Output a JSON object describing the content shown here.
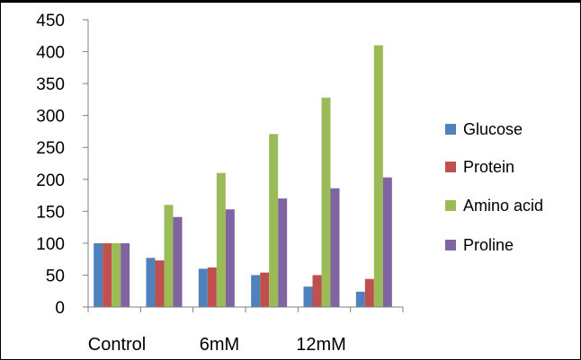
{
  "colors": {
    "glucose": "#4f81bd",
    "protein": "#c0504d",
    "amino_acid": "#9bbb59",
    "proline": "#8064a2",
    "axis": "#7f7f7f",
    "frame": "#000000",
    "text": "#000000"
  },
  "chart_data": {
    "type": "bar",
    "title": "",
    "xlabel": "",
    "ylabel": "",
    "ylim": [
      0,
      450
    ],
    "yticks": [
      0,
      50,
      100,
      150,
      200,
      250,
      300,
      350,
      400,
      450
    ],
    "grid": false,
    "legend_position": "right",
    "categories": [
      "Control",
      "",
      "6mM",
      "",
      "12mM",
      ""
    ],
    "x_tick_labels": [
      "Control",
      "6mM",
      "12mM"
    ],
    "series": [
      {
        "name": "Glucose",
        "color": "#4f81bd",
        "values": [
          100,
          77,
          60,
          50,
          32,
          24
        ]
      },
      {
        "name": "Protein",
        "color": "#c0504d",
        "values": [
          100,
          73,
          62,
          54,
          50,
          44
        ]
      },
      {
        "name": "Amino acid",
        "color": "#9bbb59",
        "values": [
          100,
          160,
          210,
          271,
          328,
          410
        ]
      },
      {
        "name": "Proline",
        "color": "#8064a2",
        "values": [
          100,
          141,
          153,
          170,
          186,
          203
        ]
      }
    ]
  }
}
